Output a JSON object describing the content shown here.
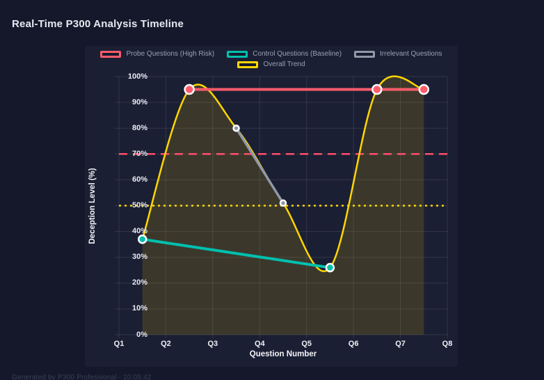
{
  "window": {
    "title": "Real-Time P300 Analysis Timeline",
    "footer": "Generated by P300 Professional - 10:05:42"
  },
  "colors": {
    "background": "#14182a",
    "panel": "#1b1f33",
    "title": "#ffd700",
    "grid": "rgba(255,255,255,0.10)",
    "probe_red": "#ff5b6b",
    "control_teal": "#00bfae",
    "irrelevant_gray": "#9097a6",
    "trend_gold": "#ffd700",
    "threshold_red": "#ff4d6b"
  },
  "chart_data": {
    "type": "line",
    "title": "Real-Time P300 Analysis Timeline",
    "xlabel": "Question Number",
    "ylabel": "Deception Level (%)",
    "x_ticks": [
      "Q1",
      "Q2",
      "Q3",
      "Q4",
      "Q5",
      "Q6",
      "Q7",
      "Q8"
    ],
    "xlim": [
      1,
      8
    ],
    "ylim": [
      0,
      100
    ],
    "y_tick_step": 10,
    "y_tick_suffix": "%",
    "grid": true,
    "legend_position": "top",
    "series": [
      {
        "name": "Probe Questions (High Risk)",
        "color": "#ff5b6b",
        "line_width": 4,
        "point_radius": 6.5,
        "smooth": false,
        "points": [
          {
            "x": 2.5,
            "y": 95
          },
          {
            "x": 6.5,
            "y": 95
          },
          {
            "x": 7.5,
            "y": 95
          }
        ]
      },
      {
        "name": "Control Questions (Baseline)",
        "color": "#00bfae",
        "line_width": 4,
        "point_radius": 5.5,
        "smooth": false,
        "points": [
          {
            "x": 1.5,
            "y": 37
          },
          {
            "x": 5.5,
            "y": 26
          }
        ]
      },
      {
        "name": "Irrelevant Questions",
        "color": "#9097a6",
        "line_width": 3.5,
        "point_radius": 4,
        "smooth": false,
        "points": [
          {
            "x": 3.5,
            "y": 80
          },
          {
            "x": 4.5,
            "y": 51
          }
        ]
      },
      {
        "name": "Overall Trend",
        "color": "#ffd700",
        "line_width": 2.5,
        "point_radius": 0,
        "smooth": true,
        "fill": "rgba(255,215,0,0.14)",
        "points": [
          {
            "x": 1.5,
            "y": 37
          },
          {
            "x": 2.5,
            "y": 95
          },
          {
            "x": 3.5,
            "y": 80
          },
          {
            "x": 4.5,
            "y": 51
          },
          {
            "x": 5.5,
            "y": 26
          },
          {
            "x": 6.5,
            "y": 95
          },
          {
            "x": 7.5,
            "y": 95
          }
        ]
      }
    ],
    "threshold_lines": [
      {
        "y": 70,
        "color": "#ff4d6b",
        "style": "dashed",
        "name": "high-risk-threshold"
      },
      {
        "y": 50,
        "color": "#ffd700",
        "style": "dotted",
        "name": "baseline-threshold"
      }
    ]
  }
}
